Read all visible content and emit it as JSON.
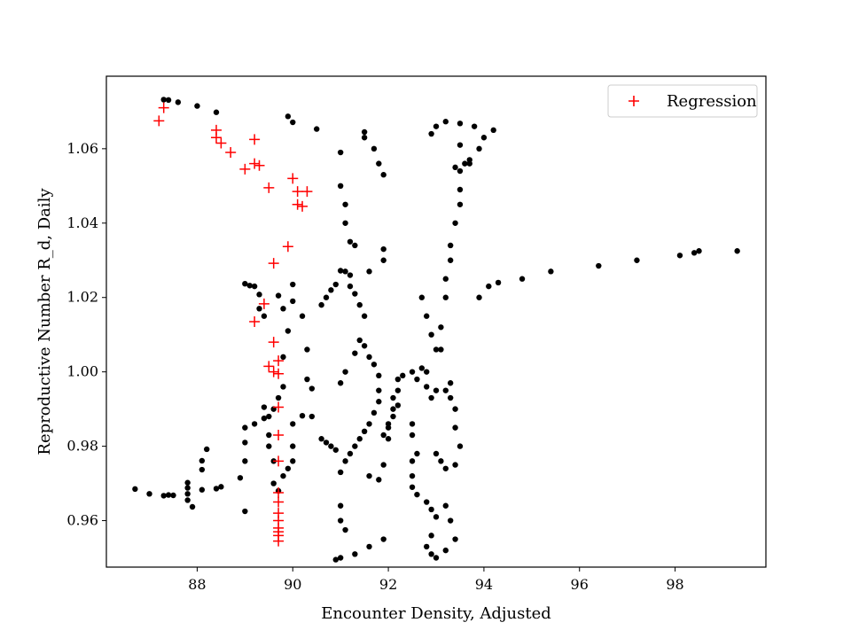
{
  "chart_data": {
    "type": "scatter",
    "xlabel": "Encounter Density, Adjusted",
    "ylabel": "Reproductive Number R_d, Daily",
    "xlim": [
      86.1,
      99.9
    ],
    "ylim": [
      0.9475,
      1.0795
    ],
    "xticks": [
      88,
      90,
      92,
      94,
      96,
      98
    ],
    "yticks": [
      0.96,
      0.98,
      1.0,
      1.02,
      1.04,
      1.06
    ],
    "xtick_labels": [
      "88",
      "90",
      "92",
      "94",
      "96",
      "98"
    ],
    "ytick_labels": [
      "0.96",
      "0.98",
      "1.00",
      "1.02",
      "1.04",
      "1.06"
    ],
    "grid": false,
    "legend": {
      "position": "top-right",
      "entries": [
        {
          "label": "Regression",
          "marker": "plus",
          "color": "#ff0000"
        }
      ]
    },
    "series": [
      {
        "marker": "dot",
        "color": "#000000",
        "points": [
          [
            86.7,
            0.9685
          ],
          [
            87.0,
            0.9672
          ],
          [
            87.3,
            0.9667
          ],
          [
            87.4,
            0.9669
          ],
          [
            87.5,
            0.9668
          ],
          [
            87.8,
            0.9655
          ],
          [
            87.8,
            0.9672
          ],
          [
            87.8,
            0.9688
          ],
          [
            87.8,
            0.9702
          ],
          [
            87.9,
            0.9637
          ],
          [
            88.1,
            0.9737
          ],
          [
            88.1,
            0.9761
          ],
          [
            88.1,
            0.9683
          ],
          [
            88.2,
            0.9792
          ],
          [
            88.4,
            0.9686
          ],
          [
            88.5,
            0.9691
          ],
          [
            88.9,
            0.9715
          ],
          [
            89.0,
            0.9625
          ],
          [
            87.3,
            1.0732
          ],
          [
            87.4,
            1.0731
          ],
          [
            87.6,
            1.0725
          ],
          [
            88.0,
            1.0715
          ],
          [
            88.4,
            1.0698
          ],
          [
            89.9,
            1.0687
          ],
          [
            90.0,
            1.0671
          ],
          [
            90.5,
            1.0653
          ],
          [
            89.0,
            1.0237
          ],
          [
            89.1,
            1.0232
          ],
          [
            89.2,
            1.023
          ],
          [
            89.3,
            1.0208
          ],
          [
            89.3,
            1.017
          ],
          [
            89.4,
            1.015
          ],
          [
            89.7,
            1.0205
          ],
          [
            89.8,
            1.017
          ],
          [
            89.9,
            1.011
          ],
          [
            89.8,
            1.004
          ],
          [
            89.8,
            0.996
          ],
          [
            89.7,
            0.993
          ],
          [
            89.6,
            0.99
          ],
          [
            89.5,
            0.988
          ],
          [
            89.4,
            0.9905
          ],
          [
            89.4,
            0.9875
          ],
          [
            89.2,
            0.986
          ],
          [
            89.0,
            0.985
          ],
          [
            89.0,
            0.981
          ],
          [
            89.0,
            0.976
          ],
          [
            89.5,
            0.983
          ],
          [
            89.5,
            0.98
          ],
          [
            89.6,
            0.976
          ],
          [
            89.6,
            0.97
          ],
          [
            89.7,
            0.968
          ],
          [
            89.8,
            0.972
          ],
          [
            89.9,
            0.974
          ],
          [
            90.0,
            0.976
          ],
          [
            90.0,
            0.98
          ],
          [
            90.0,
            0.986
          ],
          [
            90.2,
            0.9882
          ],
          [
            90.4,
            0.988
          ],
          [
            90.6,
            0.982
          ],
          [
            90.0,
            1.0235
          ],
          [
            90.0,
            1.019
          ],
          [
            90.2,
            1.015
          ],
          [
            90.3,
            1.006
          ],
          [
            90.3,
            0.998
          ],
          [
            90.4,
            0.9955
          ],
          [
            90.6,
            1.018
          ],
          [
            90.7,
            1.02
          ],
          [
            90.8,
            1.022
          ],
          [
            90.9,
            1.0235
          ],
          [
            91.0,
            1.0272
          ],
          [
            91.1,
            1.027
          ],
          [
            91.2,
            1.026
          ],
          [
            91.2,
            1.023
          ],
          [
            91.3,
            1.021
          ],
          [
            91.4,
            1.018
          ],
          [
            91.5,
            1.015
          ],
          [
            91.6,
            1.027
          ],
          [
            91.3,
            1.005
          ],
          [
            91.4,
            1.0085
          ],
          [
            91.5,
            1.007
          ],
          [
            91.6,
            1.004
          ],
          [
            91.7,
            1.002
          ],
          [
            91.8,
            0.999
          ],
          [
            91.8,
            0.995
          ],
          [
            91.8,
            0.992
          ],
          [
            91.7,
            0.989
          ],
          [
            91.6,
            0.986
          ],
          [
            91.5,
            0.984
          ],
          [
            91.4,
            0.982
          ],
          [
            91.3,
            0.98
          ],
          [
            91.2,
            0.978
          ],
          [
            91.1,
            0.976
          ],
          [
            91.0,
            0.973
          ],
          [
            90.9,
            0.979
          ],
          [
            90.8,
            0.98
          ],
          [
            90.7,
            0.981
          ],
          [
            91.0,
            0.997
          ],
          [
            91.1,
            1.0
          ],
          [
            91.0,
            1.059
          ],
          [
            91.0,
            1.05
          ],
          [
            91.1,
            1.045
          ],
          [
            91.1,
            1.04
          ],
          [
            91.2,
            1.035
          ],
          [
            91.3,
            1.034
          ],
          [
            91.5,
            1.063
          ],
          [
            91.5,
            1.0645
          ],
          [
            91.7,
            1.06
          ],
          [
            91.8,
            1.056
          ],
          [
            91.9,
            1.053
          ],
          [
            91.9,
            1.03
          ],
          [
            91.9,
            1.033
          ],
          [
            91.0,
            0.964
          ],
          [
            91.0,
            0.96
          ],
          [
            91.1,
            0.9575
          ],
          [
            91.3,
            0.951
          ],
          [
            91.6,
            0.953
          ],
          [
            91.9,
            0.955
          ],
          [
            91.0,
            0.95
          ],
          [
            90.9,
            0.9495
          ],
          [
            91.6,
            0.972
          ],
          [
            91.8,
            0.971
          ],
          [
            91.9,
            0.975
          ],
          [
            92.0,
            0.982
          ],
          [
            92.0,
            0.985
          ],
          [
            92.1,
            0.99
          ],
          [
            92.1,
            0.993
          ],
          [
            92.2,
            0.995
          ],
          [
            92.2,
            0.998
          ],
          [
            92.3,
            0.999
          ],
          [
            92.2,
            0.991
          ],
          [
            92.1,
            0.988
          ],
          [
            92.0,
            0.986
          ],
          [
            91.9,
            0.983
          ],
          [
            92.5,
            1.0
          ],
          [
            92.6,
            0.998
          ],
          [
            92.7,
            1.001
          ],
          [
            92.8,
            1.0
          ],
          [
            92.8,
            0.996
          ],
          [
            92.9,
            0.993
          ],
          [
            92.5,
            0.986
          ],
          [
            92.5,
            0.983
          ],
          [
            92.6,
            0.978
          ],
          [
            92.5,
            0.976
          ],
          [
            92.5,
            0.972
          ],
          [
            92.5,
            0.969
          ],
          [
            92.6,
            0.967
          ],
          [
            92.8,
            0.965
          ],
          [
            92.9,
            0.963
          ],
          [
            93.0,
            0.961
          ],
          [
            92.9,
            0.956
          ],
          [
            92.8,
            0.953
          ],
          [
            92.9,
            0.951
          ],
          [
            93.0,
            0.95
          ],
          [
            93.2,
            0.952
          ],
          [
            93.4,
            0.955
          ],
          [
            93.3,
            0.96
          ],
          [
            93.2,
            0.964
          ],
          [
            92.7,
            1.02
          ],
          [
            92.8,
            1.015
          ],
          [
            92.9,
            1.01
          ],
          [
            93.0,
            1.006
          ],
          [
            93.1,
            1.006
          ],
          [
            93.1,
            1.012
          ],
          [
            93.2,
            1.02
          ],
          [
            93.2,
            1.025
          ],
          [
            93.3,
            1.03
          ],
          [
            93.3,
            1.034
          ],
          [
            93.4,
            1.04
          ],
          [
            93.5,
            1.045
          ],
          [
            93.5,
            1.049
          ],
          [
            93.5,
            1.054
          ],
          [
            93.7,
            1.056
          ],
          [
            93.9,
            1.06
          ],
          [
            94.0,
            1.063
          ],
          [
            94.2,
            1.065
          ],
          [
            93.7,
            1.057
          ],
          [
            93.6,
            1.056
          ],
          [
            93.4,
            1.055
          ],
          [
            92.9,
            1.064
          ],
          [
            93.0,
            1.066
          ],
          [
            93.2,
            1.0673
          ],
          [
            93.5,
            1.0668
          ],
          [
            93.8,
            1.066
          ],
          [
            93.5,
            1.061
          ],
          [
            93.0,
            0.995
          ],
          [
            93.2,
            0.995
          ],
          [
            93.3,
            0.997
          ],
          [
            93.3,
            0.993
          ],
          [
            93.4,
            0.99
          ],
          [
            93.4,
            0.985
          ],
          [
            93.5,
            0.98
          ],
          [
            93.4,
            0.975
          ],
          [
            93.2,
            0.974
          ],
          [
            93.1,
            0.976
          ],
          [
            93.0,
            0.978
          ],
          [
            93.9,
            1.02
          ],
          [
            94.1,
            1.023
          ],
          [
            94.3,
            1.024
          ],
          [
            94.8,
            1.025
          ],
          [
            95.4,
            1.027
          ],
          [
            96.4,
            1.0285
          ],
          [
            97.2,
            1.03
          ],
          [
            98.1,
            1.0313
          ],
          [
            98.4,
            1.032
          ],
          [
            98.5,
            1.0325
          ],
          [
            99.3,
            1.0325
          ]
        ]
      },
      {
        "name": "Regression",
        "marker": "plus",
        "color": "#ff0000",
        "points": [
          [
            87.2,
            1.0675
          ],
          [
            87.3,
            1.071
          ],
          [
            88.4,
            1.065
          ],
          [
            88.4,
            1.063
          ],
          [
            88.5,
            1.0615
          ],
          [
            88.7,
            1.059
          ],
          [
            89.0,
            1.0545
          ],
          [
            89.2,
            1.0625
          ],
          [
            89.2,
            1.056
          ],
          [
            89.3,
            1.0555
          ],
          [
            89.5,
            1.0495
          ],
          [
            90.0,
            1.052
          ],
          [
            90.1,
            1.0485
          ],
          [
            90.1,
            1.045
          ],
          [
            90.3,
            1.0485
          ],
          [
            90.2,
            1.0445
          ],
          [
            89.9,
            1.0337
          ],
          [
            89.6,
            1.0292
          ],
          [
            89.4,
            1.0183
          ],
          [
            89.2,
            1.0135
          ],
          [
            89.6,
            1.008
          ],
          [
            89.5,
            1.0015
          ],
          [
            89.6,
            1.0
          ],
          [
            89.7,
            1.003
          ],
          [
            89.7,
            0.9995
          ],
          [
            89.7,
            0.9905
          ],
          [
            89.7,
            0.983
          ],
          [
            89.7,
            0.976
          ],
          [
            89.7,
            0.9675
          ],
          [
            89.7,
            0.965
          ],
          [
            89.7,
            0.962
          ],
          [
            89.7,
            0.96
          ],
          [
            89.7,
            0.958
          ],
          [
            89.7,
            0.957
          ],
          [
            89.7,
            0.956
          ],
          [
            89.7,
            0.9545
          ]
        ]
      }
    ]
  }
}
